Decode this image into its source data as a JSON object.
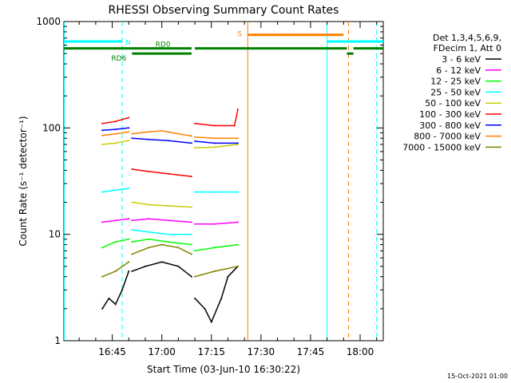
{
  "chart_data": {
    "type": "line",
    "title": "RHESSI Observing Summary Count Rates",
    "xlabel": "Start Time (03-Jun-10 16:30:22)",
    "ylabel": "Count Rate (s⁻¹ detector⁻¹)",
    "yscale": "log",
    "ylim": [
      1,
      1000
    ],
    "xlim": [
      "16:30:22",
      "18:07:00"
    ],
    "x_ticks": [
      "16:45",
      "17:00",
      "17:15",
      "17:30",
      "17:45",
      "18:00"
    ],
    "y_ticks": [
      "1",
      "10",
      "100",
      "1000"
    ],
    "legend_header": [
      "Det 1,3,4,5,6,9,",
      "FDecim 1, Att 0"
    ],
    "legend_position": "right",
    "timestamp": "15-Oct-2021 01:00",
    "series": [
      {
        "name": "3 - 6 keV",
        "color": "#000000",
        "segments": [
          {
            "x": [
              "16:42:00",
              "16:44:00",
              "16:46:00",
              "16:48:00",
              "16:50:00"
            ],
            "y": [
              2.0,
              2.5,
              2.2,
              3.0,
              4.5
            ]
          },
          {
            "x": [
              "16:51:00",
              "16:55:00",
              "17:00:00",
              "17:05:00",
              "17:09:00"
            ],
            "y": [
              4.5,
              5.0,
              5.5,
              5.0,
              4.0
            ]
          },
          {
            "x": [
              "17:10:00",
              "17:13:00",
              "17:15:00",
              "17:18:00",
              "17:20:00",
              "17:23:00"
            ],
            "y": [
              2.5,
              2.0,
              1.5,
              2.5,
              4.0,
              5.0
            ]
          }
        ]
      },
      {
        "name": "6 - 12 keV",
        "color": "#ff00ff",
        "segments": [
          {
            "x": [
              "16:42:00",
              "16:46:00",
              "16:50:00"
            ],
            "y": [
              13,
              13.5,
              14
            ]
          },
          {
            "x": [
              "16:51:00",
              "16:56:00",
              "17:02:00",
              "17:09:00"
            ],
            "y": [
              13.5,
              14,
              13.5,
              13
            ]
          },
          {
            "x": [
              "17:10:00",
              "17:16:00",
              "17:23:00"
            ],
            "y": [
              12.5,
              12.5,
              13
            ]
          }
        ]
      },
      {
        "name": "12 - 25 keV",
        "color": "#00ff00",
        "segments": [
          {
            "x": [
              "16:42:00",
              "16:46:00",
              "16:50:00"
            ],
            "y": [
              7.5,
              8.5,
              9
            ]
          },
          {
            "x": [
              "16:51:00",
              "16:56:00",
              "17:02:00",
              "17:09:00"
            ],
            "y": [
              8.5,
              9,
              8.5,
              8
            ]
          },
          {
            "x": [
              "17:10:00",
              "17:16:00",
              "17:23:00"
            ],
            "y": [
              7,
              7.5,
              8
            ]
          }
        ]
      },
      {
        "name": "25 - 50 keV",
        "color": "#00ffff",
        "segments": [
          {
            "x": [
              "16:42:00",
              "16:46:00",
              "16:50:00"
            ],
            "y": [
              25,
              26,
              27
            ]
          },
          {
            "x": [
              "16:51:00",
              "16:56:00",
              "17:02:00",
              "17:09:00"
            ],
            "y": [
              11,
              10.5,
              10,
              10
            ]
          },
          {
            "x": [
              "17:10:00",
              "17:16:00",
              "17:23:00"
            ],
            "y": [
              25,
              25,
              25
            ]
          }
        ]
      },
      {
        "name": "50 - 100 keV",
        "color": "#cccc00",
        "segments": [
          {
            "x": [
              "16:42:00",
              "16:46:00",
              "16:50:00"
            ],
            "y": [
              70,
              72,
              76
            ]
          },
          {
            "x": [
              "16:51:00",
              "16:56:00",
              "17:02:00",
              "17:09:00"
            ],
            "y": [
              20,
              19,
              18.5,
              18
            ]
          },
          {
            "x": [
              "17:10:00",
              "17:16:00",
              "17:23:00"
            ],
            "y": [
              65,
              66,
              70
            ]
          }
        ]
      },
      {
        "name": "100 - 300 keV",
        "color": "#ff0000",
        "segments": [
          {
            "x": [
              "16:42:00",
              "16:46:00",
              "16:50:00"
            ],
            "y": [
              110,
              115,
              125
            ]
          },
          {
            "x": [
              "16:51:00",
              "16:56:00",
              "17:02:00",
              "17:09:00"
            ],
            "y": [
              41,
              39,
              37,
              35
            ]
          },
          {
            "x": [
              "17:10:00",
              "17:16:00",
              "17:22:00",
              "17:23:00"
            ],
            "y": [
              110,
              105,
              105,
              150
            ]
          }
        ]
      },
      {
        "name": "300 - 800 keV",
        "color": "#0000ff",
        "segments": [
          {
            "x": [
              "16:42:00",
              "16:46:00",
              "16:50:00"
            ],
            "y": [
              95,
              97,
              100
            ]
          },
          {
            "x": [
              "16:51:00",
              "16:56:00",
              "17:02:00",
              "17:09:00"
            ],
            "y": [
              80,
              78,
              76,
              72
            ]
          },
          {
            "x": [
              "17:10:00",
              "17:16:00",
              "17:23:00"
            ],
            "y": [
              75,
              72,
              72
            ]
          }
        ]
      },
      {
        "name": "800 - 7000 keV",
        "color": "#ff8000",
        "segments": [
          {
            "x": [
              "16:42:00",
              "16:46:00",
              "16:50:00"
            ],
            "y": [
              85,
              88,
              92
            ]
          },
          {
            "x": [
              "16:51:00",
              "16:56:00",
              "17:00:00",
              "17:05:00",
              "17:09:00"
            ],
            "y": [
              88,
              92,
              94,
              88,
              84
            ]
          },
          {
            "x": [
              "17:10:00",
              "17:16:00",
              "17:23:00"
            ],
            "y": [
              82,
              80,
              80
            ]
          }
        ]
      },
      {
        "name": "7000 - 15000 keV",
        "color": "#808000",
        "segments": [
          {
            "x": [
              "16:42:00",
              "16:46:00",
              "16:50:00"
            ],
            "y": [
              4,
              4.5,
              5.5
            ]
          },
          {
            "x": [
              "16:51:00",
              "16:56:00",
              "17:00:00",
              "17:05:00",
              "17:09:00"
            ],
            "y": [
              6.5,
              7.5,
              8,
              7.5,
              6.5
            ]
          },
          {
            "x": [
              "17:10:00",
              "17:16:00",
              "17:23:00"
            ],
            "y": [
              4,
              4.5,
              5
            ]
          }
        ]
      }
    ],
    "attenuator_flags": [
      {
        "label": "N",
        "color": "#00ffff",
        "y": 650,
        "segments": [
          {
            "x0": "16:30:22",
            "x1": "16:48:00"
          },
          {
            "x0": "17:50:00",
            "x1": "18:07:00"
          }
        ]
      },
      {
        "label": "S",
        "color": "#ff8000",
        "y": 750,
        "segments": [
          {
            "x0": "17:26:00",
            "x1": "17:55:00"
          }
        ]
      },
      {
        "label": "RD0",
        "color": "#008000",
        "y": 560,
        "segments": [
          {
            "x0": "16:30:22",
            "x1": "17:09:00"
          },
          {
            "x0": "17:10:00",
            "x1": "17:56:00"
          },
          {
            "x0": "17:58:00",
            "x1": "18:07:00"
          }
        ]
      },
      {
        "label": "RD6",
        "color": "#008000",
        "y": 500,
        "segments": [
          {
            "x0": "16:51:00",
            "x1": "17:09:00"
          },
          {
            "x0": "17:56:00",
            "x1": "17:58:00"
          }
        ]
      }
    ],
    "vertical_markers": [
      {
        "x": "16:30:30",
        "color": "#00ffff",
        "style": "solid"
      },
      {
        "x": "16:48:00",
        "color": "#00ffff",
        "style": "dashed"
      },
      {
        "x": "17:26:00",
        "color": "#ff8000",
        "style": "solid"
      },
      {
        "x": "17:50:00",
        "color": "#00ffff",
        "style": "solid"
      },
      {
        "x": "17:56:30",
        "color": "#ff8000",
        "style": "dashed"
      },
      {
        "x": "18:05:00",
        "color": "#00ffff",
        "style": "dashed"
      }
    ]
  }
}
